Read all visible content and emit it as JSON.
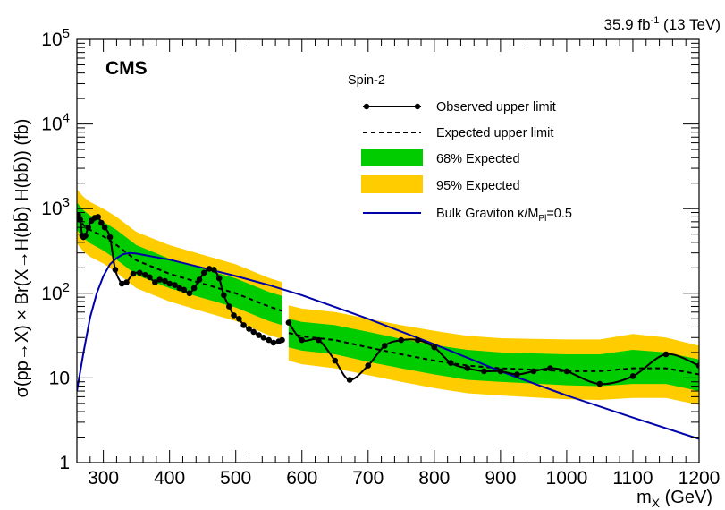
{
  "chart_data": {
    "type": "line",
    "x_scale": "linear",
    "y_scale": "log",
    "xlim": [
      260,
      1200
    ],
    "ylim": [
      1,
      100000
    ],
    "x_ticks": [
      300,
      400,
      500,
      600,
      700,
      800,
      900,
      1000,
      1100,
      1200
    ],
    "x_tick_labels": [
      "300",
      "400",
      "500",
      "600",
      "700",
      "800",
      "900",
      "1000",
      "1100",
      "1200"
    ],
    "y_ticks": [
      1,
      10,
      100,
      1000,
      10000,
      100000
    ],
    "y_tick_labels": [
      {
        "base": "1",
        "exp": ""
      },
      {
        "base": "10",
        "exp": ""
      },
      {
        "base": "10",
        "exp": "2"
      },
      {
        "base": "10",
        "exp": "3"
      },
      {
        "base": "10",
        "exp": "4"
      },
      {
        "base": "10",
        "exp": "5"
      }
    ],
    "xlabel": {
      "main": "m",
      "sub": "X",
      "unit": " (GeV)"
    },
    "ylabel": "σ(pp→X) × Br(X→H(bb̄) H(bb̄)) (fb)",
    "experiment_label": "CMS",
    "lumi_label": {
      "value": "35.9 fb",
      "exp": "-1",
      "suffix": " (13 TeV)"
    },
    "legend": {
      "title": "Spin-2",
      "placement": "top-right",
      "entries": [
        {
          "label": "Observed upper limit",
          "style": "line-marker"
        },
        {
          "label": "Expected upper limit",
          "style": "dashed"
        },
        {
          "label": "68% Expected",
          "style": "band-inner"
        },
        {
          "label": "95% Expected",
          "style": "band-outer"
        },
        {
          "label_main": "Bulk Graviton κ/M",
          "label_sub": "Pl",
          "label_tail": "=0.5",
          "style": "theory"
        }
      ]
    },
    "colors": {
      "band68": "#00cc00",
      "band95": "#ffcc00",
      "observed": "#000000",
      "expected": "#000000",
      "theory": "#0000aa"
    },
    "segments": [
      {
        "name": "low-mass",
        "expected": {
          "x": [
            260,
            270,
            280,
            300,
            320,
            350,
            400,
            450,
            500,
            550,
            570
          ],
          "y": [
            800,
            640,
            560,
            470,
            370,
            245,
            170,
            130,
            100,
            70,
            62
          ]
        },
        "band68": {
          "x": [
            260,
            270,
            280,
            300,
            320,
            350,
            400,
            450,
            500,
            550,
            570
          ],
          "lo": [
            560,
            450,
            390,
            320,
            250,
            165,
            115,
            88,
            68,
            47,
            42
          ],
          "hi": [
            1180,
            960,
            830,
            700,
            560,
            370,
            255,
            195,
            150,
            104,
            93
          ]
        },
        "band95": {
          "x": [
            260,
            270,
            280,
            300,
            320,
            350,
            400,
            450,
            500,
            550,
            570
          ],
          "lo": [
            390,
            310,
            270,
            225,
            175,
            115,
            80,
            61,
            47,
            32,
            29
          ],
          "hi": [
            1700,
            1380,
            1200,
            1000,
            800,
            530,
            370,
            285,
            220,
            152,
            136
          ]
        },
        "observed": {
          "x": [
            262,
            265,
            268,
            270,
            273,
            277,
            282,
            287,
            292,
            297,
            302,
            310,
            318,
            328,
            335,
            345,
            355,
            363,
            370,
            378,
            385,
            393,
            400,
            408,
            415,
            422,
            430,
            437,
            445,
            452,
            460,
            467,
            475,
            482,
            490,
            497,
            505,
            512,
            520,
            527,
            535,
            542,
            550,
            557,
            565,
            570
          ],
          "y": [
            840,
            740,
            480,
            460,
            480,
            600,
            720,
            780,
            800,
            680,
            600,
            460,
            190,
            130,
            135,
            170,
            175,
            165,
            155,
            135,
            145,
            140,
            130,
            125,
            115,
            110,
            100,
            115,
            145,
            175,
            195,
            190,
            150,
            95,
            70,
            55,
            50,
            42,
            38,
            35,
            32,
            30,
            28,
            26,
            27,
            28
          ]
        }
      },
      {
        "name": "high-mass",
        "expected": {
          "x": [
            580,
            600,
            650,
            700,
            750,
            800,
            850,
            900,
            950,
            1000,
            1050,
            1100,
            1150,
            1200
          ],
          "y": [
            34,
            31,
            28,
            23,
            19,
            16,
            14,
            13,
            12.5,
            12,
            12,
            13,
            13,
            11
          ]
        },
        "band68": {
          "x": [
            580,
            600,
            650,
            700,
            750,
            800,
            850,
            900,
            950,
            1000,
            1050,
            1100,
            1150,
            1200
          ],
          "lo": [
            23,
            21,
            19,
            15.5,
            13,
            11,
            9.5,
            9,
            8.6,
            8.2,
            8,
            8.5,
            8.5,
            7
          ],
          "hi": [
            50,
            46,
            42,
            35,
            29,
            24.5,
            21.5,
            20,
            19.5,
            19,
            19,
            21.5,
            20,
            16.5
          ]
        },
        "band95": {
          "x": [
            580,
            600,
            650,
            700,
            750,
            800,
            850,
            900,
            950,
            1000,
            1050,
            1100,
            1150,
            1200
          ],
          "lo": [
            16,
            14.5,
            13,
            10.8,
            9,
            7.6,
            6.6,
            6.2,
            5.9,
            5.6,
            5.5,
            5.8,
            5.8,
            4.8
          ],
          "hi": [
            72,
            66,
            60,
            50,
            42,
            36,
            31.5,
            29.5,
            29,
            28.5,
            28.5,
            33,
            30,
            24
          ]
        },
        "observed": {
          "x": [
            580,
            600,
            625,
            650,
            672,
            700,
            725,
            750,
            775,
            800,
            825,
            850,
            875,
            900,
            925,
            950,
            975,
            1000,
            1050,
            1100,
            1150,
            1200
          ],
          "y": [
            45,
            28,
            28,
            16,
            9.5,
            14,
            24,
            28,
            28,
            23,
            15,
            13,
            12,
            12,
            11,
            12,
            13,
            12,
            8.5,
            10.5,
            19,
            14
          ]
        }
      }
    ],
    "theory": {
      "name": "Bulk Graviton",
      "x": [
        260,
        270,
        280,
        290,
        300,
        310,
        320,
        330,
        340,
        350,
        370,
        400,
        450,
        500,
        550,
        600,
        700,
        800,
        900,
        1000,
        1100,
        1200
      ],
      "y": [
        7,
        20,
        52,
        100,
        160,
        220,
        260,
        290,
        300,
        295,
        275,
        250,
        200,
        160,
        125,
        95,
        50,
        25,
        12,
        6.2,
        3.4,
        1.9
      ]
    }
  }
}
